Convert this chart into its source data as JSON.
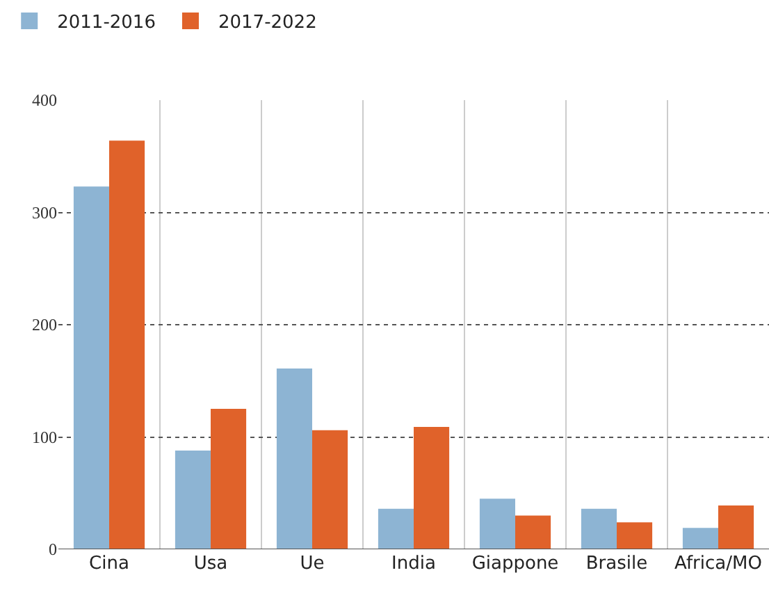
{
  "chart_data": {
    "type": "bar",
    "categories": [
      "Cina",
      "Usa",
      "Ue",
      "India",
      "Giappone",
      "Brasile",
      "Africa/MO"
    ],
    "series": [
      {
        "name": "2011-2016",
        "color": "#8db4d3",
        "values": [
          323,
          88,
          161,
          36,
          45,
          36,
          19
        ]
      },
      {
        "name": "2017-2022",
        "color": "#e0622a",
        "values": [
          364,
          125,
          106,
          109,
          30,
          24,
          39
        ]
      }
    ],
    "ylim": [
      0,
      400
    ],
    "yticks": [
      0,
      100,
      200,
      300,
      400
    ],
    "grid": true,
    "legend": "top left"
  }
}
